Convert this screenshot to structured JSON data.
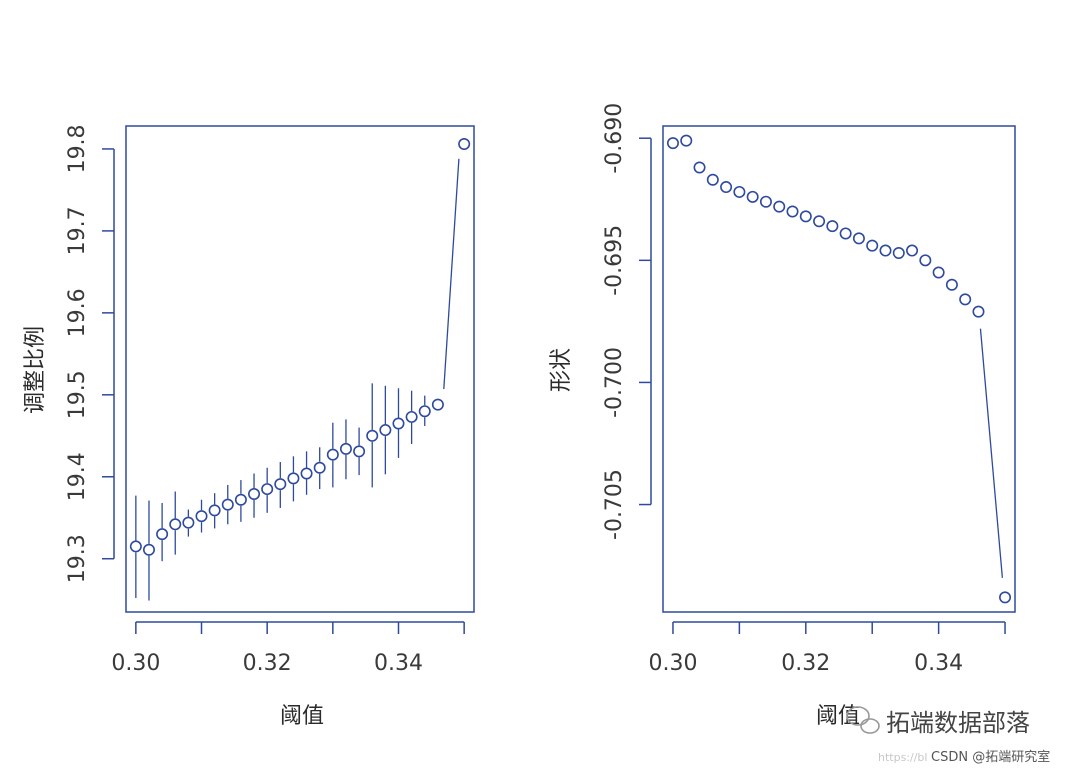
{
  "chart_data": [
    {
      "type": "scatter",
      "xlabel": "阈值",
      "ylabel": "调整比例",
      "xlim": [
        0.2985,
        0.3515
      ],
      "ylim": [
        19.235,
        19.828
      ],
      "x_ticks": [
        0.3,
        0.32,
        0.34
      ],
      "x_tick_labels": [
        "0.30",
        "0.32",
        "0.34"
      ],
      "y_ticks": [
        19.3,
        19.4,
        19.5,
        19.6,
        19.7,
        19.8
      ],
      "y_tick_labels": [
        "19.3",
        "19.4",
        "19.5",
        "19.6",
        "19.7",
        "19.8"
      ],
      "x_minor_ticks": [
        0.3,
        0.31,
        0.32,
        0.33,
        0.34,
        0.35
      ],
      "color": "#2e4a9e",
      "points": [
        {
          "x": 0.3,
          "y": 19.315,
          "lo": 19.252,
          "hi": 19.377
        },
        {
          "x": 0.302,
          "y": 19.311,
          "lo": 19.249,
          "hi": 19.371
        },
        {
          "x": 0.304,
          "y": 19.33,
          "lo": 19.297,
          "hi": 19.368
        },
        {
          "x": 0.306,
          "y": 19.342,
          "lo": 19.305,
          "hi": 19.382
        },
        {
          "x": 0.308,
          "y": 19.344,
          "lo": 19.327,
          "hi": 19.36
        },
        {
          "x": 0.31,
          "y": 19.352,
          "lo": 19.332,
          "hi": 19.372
        },
        {
          "x": 0.312,
          "y": 19.359,
          "lo": 19.337,
          "hi": 19.38
        },
        {
          "x": 0.314,
          "y": 19.366,
          "lo": 19.342,
          "hi": 19.39
        },
        {
          "x": 0.316,
          "y": 19.372,
          "lo": 19.345,
          "hi": 19.396
        },
        {
          "x": 0.318,
          "y": 19.379,
          "lo": 19.35,
          "hi": 19.404
        },
        {
          "x": 0.32,
          "y": 19.385,
          "lo": 19.356,
          "hi": 19.411
        },
        {
          "x": 0.322,
          "y": 19.391,
          "lo": 19.362,
          "hi": 19.418
        },
        {
          "x": 0.324,
          "y": 19.398,
          "lo": 19.37,
          "hi": 19.425
        },
        {
          "x": 0.326,
          "y": 19.404,
          "lo": 19.378,
          "hi": 19.431
        },
        {
          "x": 0.328,
          "y": 19.411,
          "lo": 19.385,
          "hi": 19.436
        },
        {
          "x": 0.33,
          "y": 19.427,
          "lo": 19.387,
          "hi": 19.466
        },
        {
          "x": 0.332,
          "y": 19.434,
          "lo": 19.397,
          "hi": 19.47
        },
        {
          "x": 0.334,
          "y": 19.431,
          "lo": 19.402,
          "hi": 19.46
        },
        {
          "x": 0.336,
          "y": 19.45,
          "lo": 19.387,
          "hi": 19.514
        },
        {
          "x": 0.338,
          "y": 19.457,
          "lo": 19.403,
          "hi": 19.511
        },
        {
          "x": 0.34,
          "y": 19.465,
          "lo": 19.423,
          "hi": 19.508
        },
        {
          "x": 0.342,
          "y": 19.473,
          "lo": 19.44,
          "hi": 19.505
        },
        {
          "x": 0.344,
          "y": 19.48,
          "lo": 19.462,
          "hi": 19.499
        },
        {
          "x": 0.346,
          "y": 19.488,
          "lo": 19.488,
          "hi": 19.488
        },
        {
          "x": 0.35,
          "y": 19.806,
          "lo": 19.788,
          "hi": 19.788
        }
      ],
      "connector": {
        "x1": 0.3469,
        "y1": 19.507,
        "x2": 0.3492,
        "y2": 19.788
      }
    },
    {
      "type": "scatter",
      "xlabel": "阈值",
      "ylabel": "形状",
      "xlim": [
        0.2985,
        0.3515
      ],
      "ylim": [
        -0.7094,
        -0.6895
      ],
      "x_ticks": [
        0.3,
        0.32,
        0.34
      ],
      "x_tick_labels": [
        "0.30",
        "0.32",
        "0.34"
      ],
      "y_ticks": [
        -0.69,
        -0.695,
        -0.7,
        -0.705
      ],
      "y_tick_labels": [
        "-0.690",
        "-0.695",
        "-0.700",
        "-0.705"
      ],
      "x_minor_ticks": [
        0.3,
        0.31,
        0.32,
        0.33,
        0.34,
        0.35
      ],
      "color": "#2e4a9e",
      "points": [
        {
          "x": 0.3,
          "y": -0.6902
        },
        {
          "x": 0.302,
          "y": -0.6901
        },
        {
          "x": 0.304,
          "y": -0.6912
        },
        {
          "x": 0.306,
          "y": -0.6917
        },
        {
          "x": 0.308,
          "y": -0.692
        },
        {
          "x": 0.31,
          "y": -0.6922
        },
        {
          "x": 0.312,
          "y": -0.6924
        },
        {
          "x": 0.314,
          "y": -0.6926
        },
        {
          "x": 0.316,
          "y": -0.6928
        },
        {
          "x": 0.318,
          "y": -0.693
        },
        {
          "x": 0.32,
          "y": -0.6932
        },
        {
          "x": 0.322,
          "y": -0.6934
        },
        {
          "x": 0.324,
          "y": -0.6936
        },
        {
          "x": 0.326,
          "y": -0.6939
        },
        {
          "x": 0.328,
          "y": -0.6941
        },
        {
          "x": 0.33,
          "y": -0.6944
        },
        {
          "x": 0.332,
          "y": -0.6946
        },
        {
          "x": 0.334,
          "y": -0.6947
        },
        {
          "x": 0.336,
          "y": -0.6946
        },
        {
          "x": 0.338,
          "y": -0.695
        },
        {
          "x": 0.34,
          "y": -0.6955
        },
        {
          "x": 0.342,
          "y": -0.696
        },
        {
          "x": 0.344,
          "y": -0.6966
        },
        {
          "x": 0.346,
          "y": -0.6971
        },
        {
          "x": 0.35,
          "y": -0.7088
        }
      ],
      "connector": {
        "x1": 0.3463,
        "y1": -0.6978,
        "x2": 0.3496,
        "y2": -0.708
      }
    }
  ],
  "watermark": {
    "brand": "拓端数据部落",
    "credit": "CSDN @拓端研究室",
    "faint_url": "https://bl"
  }
}
